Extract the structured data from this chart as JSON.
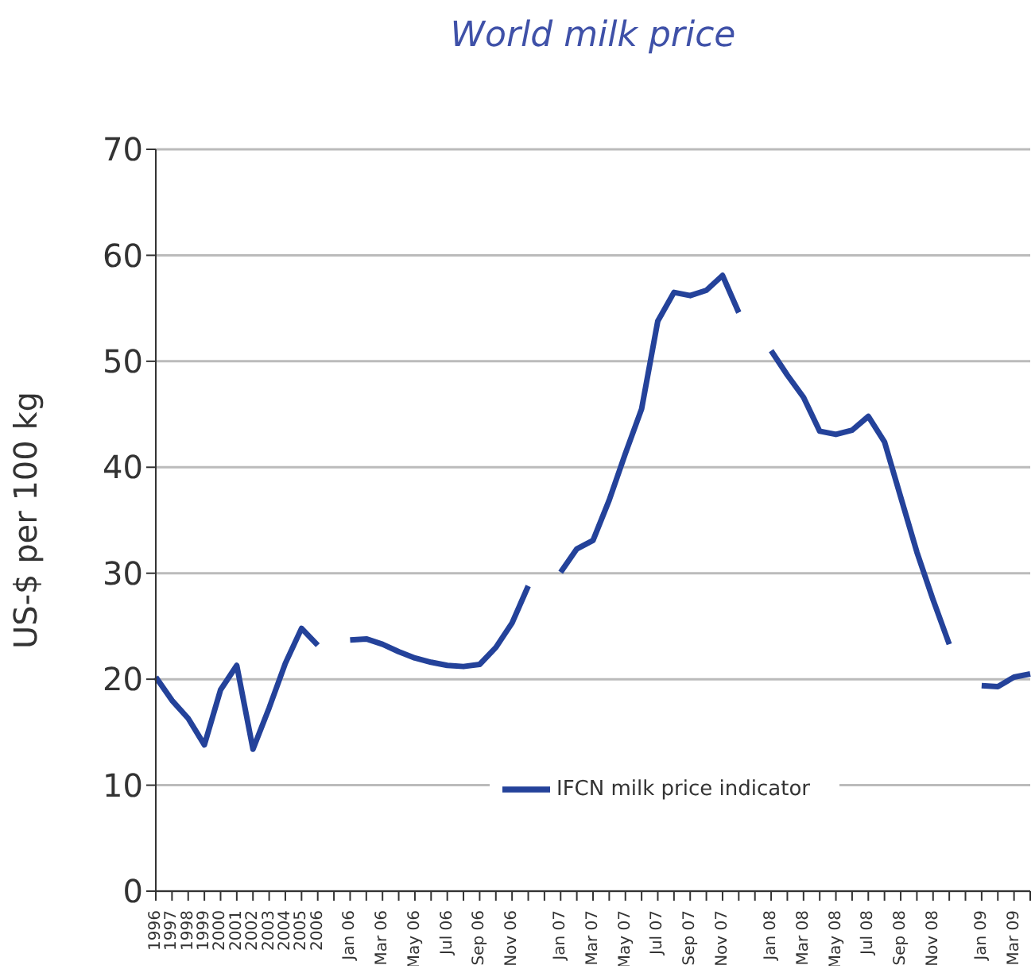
{
  "chart_data": {
    "type": "line",
    "title": "World milk price",
    "ylabel": "US-$ per 100 kg",
    "categories": [
      "1996",
      "1997",
      "1998",
      "1999",
      "2000",
      "2001",
      "2002",
      "2003",
      "2004",
      "2005",
      "2006",
      null,
      "Jan 06",
      null,
      "Mar 06",
      null,
      "May 06",
      null,
      "Jul 06",
      null,
      "Sep 06",
      null,
      "Nov 06",
      null,
      null,
      "Jan 07",
      null,
      "Mar 07",
      null,
      "May 07",
      null,
      "Jul 07",
      null,
      "Sep 07",
      null,
      "Nov 07",
      null,
      null,
      "Jan 08",
      null,
      "Mar 08",
      null,
      "May 08",
      null,
      "Jul 08",
      null,
      "Sep 08",
      null,
      "Nov 08",
      null,
      null,
      "Jan 09",
      null,
      "Mar 09",
      null
    ],
    "series": [
      {
        "name": "IFCN milk price indicator",
        "color": "#24429a",
        "values": [
          20.2,
          18.0,
          16.3,
          13.8,
          19.0,
          21.3,
          13.4,
          17.3,
          21.5,
          24.8,
          23.2,
          null,
          23.7,
          23.8,
          23.3,
          22.6,
          22.0,
          21.6,
          21.3,
          21.2,
          21.4,
          23.0,
          25.3,
          28.8,
          null,
          30.1,
          32.3,
          33.1,
          36.9,
          41.3,
          45.5,
          53.8,
          56.5,
          56.2,
          56.7,
          58.1,
          54.6,
          null,
          51.0,
          48.7,
          46.6,
          43.4,
          43.1,
          43.5,
          44.8,
          42.4,
          37.2,
          32.0,
          27.5,
          23.3,
          null,
          19.4,
          19.3,
          20.2,
          20.5
        ]
      }
    ],
    "ylim": [
      0,
      70
    ],
    "yticks": [
      0,
      10,
      20,
      30,
      40,
      50,
      60,
      70
    ],
    "grid": "y",
    "legend": "bottom",
    "line_style": "solid"
  }
}
